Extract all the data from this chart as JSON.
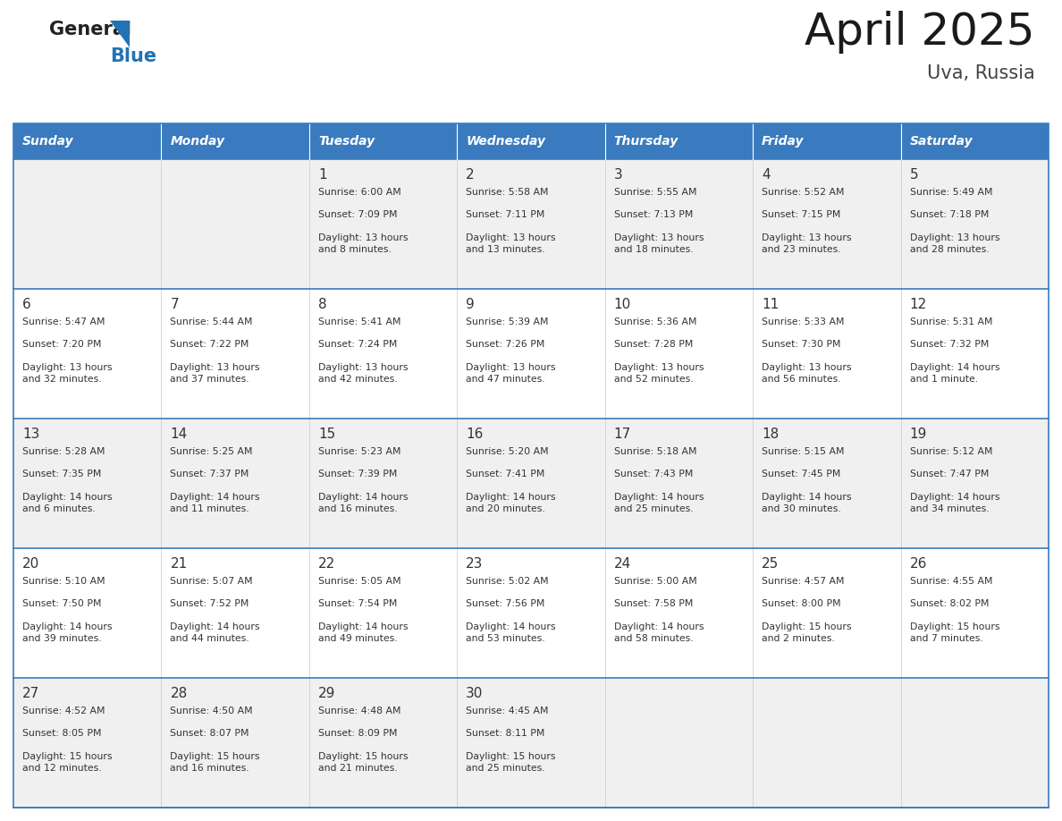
{
  "title": "April 2025",
  "subtitle": "Uva, Russia",
  "header_bg": "#3a7bbf",
  "header_text_color": "#ffffff",
  "days_of_week": [
    "Sunday",
    "Monday",
    "Tuesday",
    "Wednesday",
    "Thursday",
    "Friday",
    "Saturday"
  ],
  "row_bg_odd": "#f0f0f0",
  "row_bg_even": "#ffffff",
  "cell_border_color": "#3a7bbf",
  "text_color": "#333333",
  "calendar": [
    [
      {
        "day": "",
        "sunrise": "",
        "sunset": "",
        "daylight": ""
      },
      {
        "day": "",
        "sunrise": "",
        "sunset": "",
        "daylight": ""
      },
      {
        "day": "1",
        "sunrise": "Sunrise: 6:00 AM",
        "sunset": "Sunset: 7:09 PM",
        "daylight": "Daylight: 13 hours\nand 8 minutes."
      },
      {
        "day": "2",
        "sunrise": "Sunrise: 5:58 AM",
        "sunset": "Sunset: 7:11 PM",
        "daylight": "Daylight: 13 hours\nand 13 minutes."
      },
      {
        "day": "3",
        "sunrise": "Sunrise: 5:55 AM",
        "sunset": "Sunset: 7:13 PM",
        "daylight": "Daylight: 13 hours\nand 18 minutes."
      },
      {
        "day": "4",
        "sunrise": "Sunrise: 5:52 AM",
        "sunset": "Sunset: 7:15 PM",
        "daylight": "Daylight: 13 hours\nand 23 minutes."
      },
      {
        "day": "5",
        "sunrise": "Sunrise: 5:49 AM",
        "sunset": "Sunset: 7:18 PM",
        "daylight": "Daylight: 13 hours\nand 28 minutes."
      }
    ],
    [
      {
        "day": "6",
        "sunrise": "Sunrise: 5:47 AM",
        "sunset": "Sunset: 7:20 PM",
        "daylight": "Daylight: 13 hours\nand 32 minutes."
      },
      {
        "day": "7",
        "sunrise": "Sunrise: 5:44 AM",
        "sunset": "Sunset: 7:22 PM",
        "daylight": "Daylight: 13 hours\nand 37 minutes."
      },
      {
        "day": "8",
        "sunrise": "Sunrise: 5:41 AM",
        "sunset": "Sunset: 7:24 PM",
        "daylight": "Daylight: 13 hours\nand 42 minutes."
      },
      {
        "day": "9",
        "sunrise": "Sunrise: 5:39 AM",
        "sunset": "Sunset: 7:26 PM",
        "daylight": "Daylight: 13 hours\nand 47 minutes."
      },
      {
        "day": "10",
        "sunrise": "Sunrise: 5:36 AM",
        "sunset": "Sunset: 7:28 PM",
        "daylight": "Daylight: 13 hours\nand 52 minutes."
      },
      {
        "day": "11",
        "sunrise": "Sunrise: 5:33 AM",
        "sunset": "Sunset: 7:30 PM",
        "daylight": "Daylight: 13 hours\nand 56 minutes."
      },
      {
        "day": "12",
        "sunrise": "Sunrise: 5:31 AM",
        "sunset": "Sunset: 7:32 PM",
        "daylight": "Daylight: 14 hours\nand 1 minute."
      }
    ],
    [
      {
        "day": "13",
        "sunrise": "Sunrise: 5:28 AM",
        "sunset": "Sunset: 7:35 PM",
        "daylight": "Daylight: 14 hours\nand 6 minutes."
      },
      {
        "day": "14",
        "sunrise": "Sunrise: 5:25 AM",
        "sunset": "Sunset: 7:37 PM",
        "daylight": "Daylight: 14 hours\nand 11 minutes."
      },
      {
        "day": "15",
        "sunrise": "Sunrise: 5:23 AM",
        "sunset": "Sunset: 7:39 PM",
        "daylight": "Daylight: 14 hours\nand 16 minutes."
      },
      {
        "day": "16",
        "sunrise": "Sunrise: 5:20 AM",
        "sunset": "Sunset: 7:41 PM",
        "daylight": "Daylight: 14 hours\nand 20 minutes."
      },
      {
        "day": "17",
        "sunrise": "Sunrise: 5:18 AM",
        "sunset": "Sunset: 7:43 PM",
        "daylight": "Daylight: 14 hours\nand 25 minutes."
      },
      {
        "day": "18",
        "sunrise": "Sunrise: 5:15 AM",
        "sunset": "Sunset: 7:45 PM",
        "daylight": "Daylight: 14 hours\nand 30 minutes."
      },
      {
        "day": "19",
        "sunrise": "Sunrise: 5:12 AM",
        "sunset": "Sunset: 7:47 PM",
        "daylight": "Daylight: 14 hours\nand 34 minutes."
      }
    ],
    [
      {
        "day": "20",
        "sunrise": "Sunrise: 5:10 AM",
        "sunset": "Sunset: 7:50 PM",
        "daylight": "Daylight: 14 hours\nand 39 minutes."
      },
      {
        "day": "21",
        "sunrise": "Sunrise: 5:07 AM",
        "sunset": "Sunset: 7:52 PM",
        "daylight": "Daylight: 14 hours\nand 44 minutes."
      },
      {
        "day": "22",
        "sunrise": "Sunrise: 5:05 AM",
        "sunset": "Sunset: 7:54 PM",
        "daylight": "Daylight: 14 hours\nand 49 minutes."
      },
      {
        "day": "23",
        "sunrise": "Sunrise: 5:02 AM",
        "sunset": "Sunset: 7:56 PM",
        "daylight": "Daylight: 14 hours\nand 53 minutes."
      },
      {
        "day": "24",
        "sunrise": "Sunrise: 5:00 AM",
        "sunset": "Sunset: 7:58 PM",
        "daylight": "Daylight: 14 hours\nand 58 minutes."
      },
      {
        "day": "25",
        "sunrise": "Sunrise: 4:57 AM",
        "sunset": "Sunset: 8:00 PM",
        "daylight": "Daylight: 15 hours\nand 2 minutes."
      },
      {
        "day": "26",
        "sunrise": "Sunrise: 4:55 AM",
        "sunset": "Sunset: 8:02 PM",
        "daylight": "Daylight: 15 hours\nand 7 minutes."
      }
    ],
    [
      {
        "day": "27",
        "sunrise": "Sunrise: 4:52 AM",
        "sunset": "Sunset: 8:05 PM",
        "daylight": "Daylight: 15 hours\nand 12 minutes."
      },
      {
        "day": "28",
        "sunrise": "Sunrise: 4:50 AM",
        "sunset": "Sunset: 8:07 PM",
        "daylight": "Daylight: 15 hours\nand 16 minutes."
      },
      {
        "day": "29",
        "sunrise": "Sunrise: 4:48 AM",
        "sunset": "Sunset: 8:09 PM",
        "daylight": "Daylight: 15 hours\nand 21 minutes."
      },
      {
        "day": "30",
        "sunrise": "Sunrise: 4:45 AM",
        "sunset": "Sunset: 8:11 PM",
        "daylight": "Daylight: 15 hours\nand 25 minutes."
      },
      {
        "day": "",
        "sunrise": "",
        "sunset": "",
        "daylight": ""
      },
      {
        "day": "",
        "sunrise": "",
        "sunset": "",
        "daylight": ""
      },
      {
        "day": "",
        "sunrise": "",
        "sunset": "",
        "daylight": ""
      }
    ]
  ]
}
